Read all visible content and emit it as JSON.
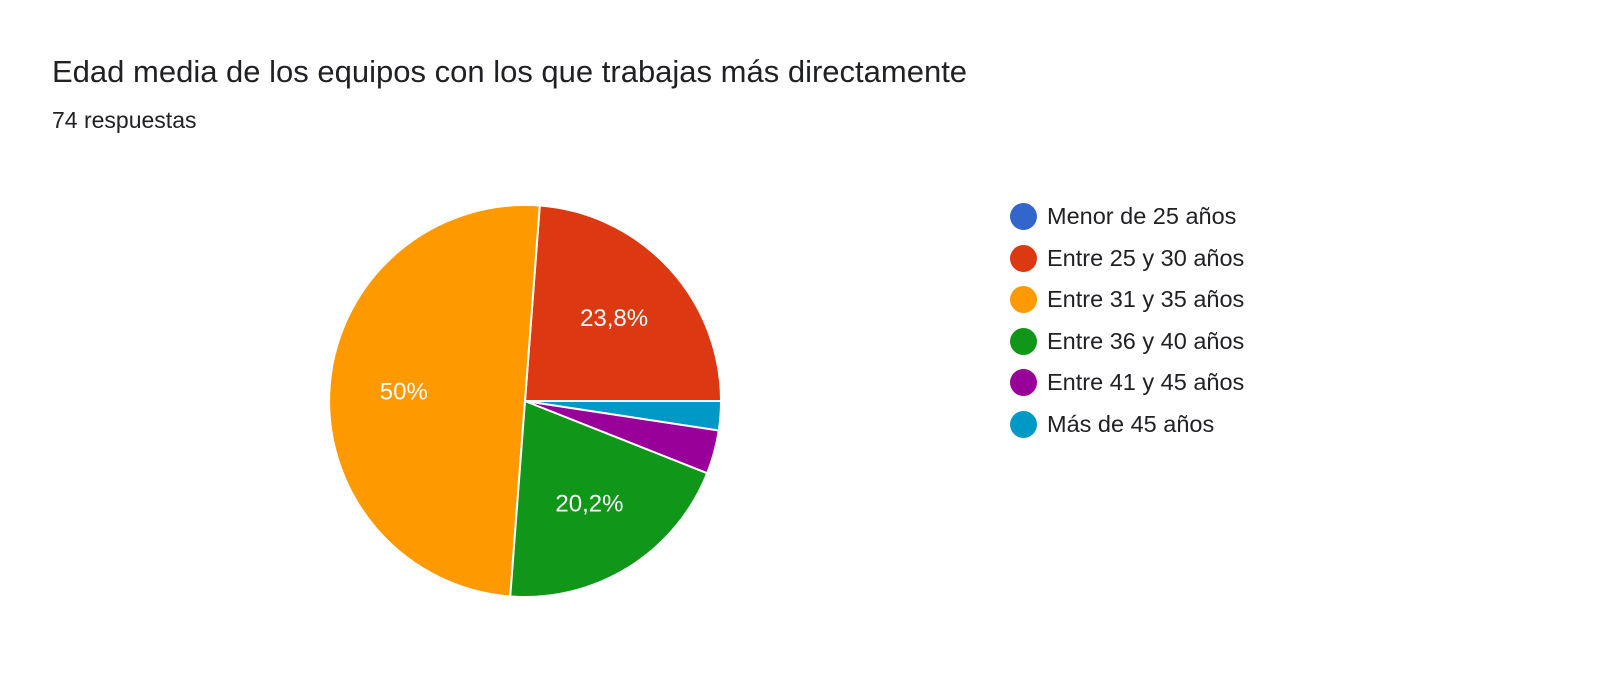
{
  "chart_data": {
    "type": "pie",
    "title": "Edad media de los equipos con los que trabajas más directamente",
    "subtitle": "74 respuestas",
    "categories": [
      "Menor de 25 años",
      "Entre 25 y 30 años",
      "Entre 31 y 35 años",
      "Entre 36 y 40 años",
      "Entre 41 y 45 años",
      "Más de 45 años"
    ],
    "values": [
      0,
      23.8,
      50,
      20.2,
      3.6,
      2.4
    ],
    "data_labels": [
      "",
      "23,8%",
      "50%",
      "20,2%",
      "",
      ""
    ],
    "colors": [
      "#3366cc",
      "#dc3912",
      "#ff9900",
      "#109618",
      "#990099",
      "#0099c6"
    ],
    "legend_position": "right"
  }
}
